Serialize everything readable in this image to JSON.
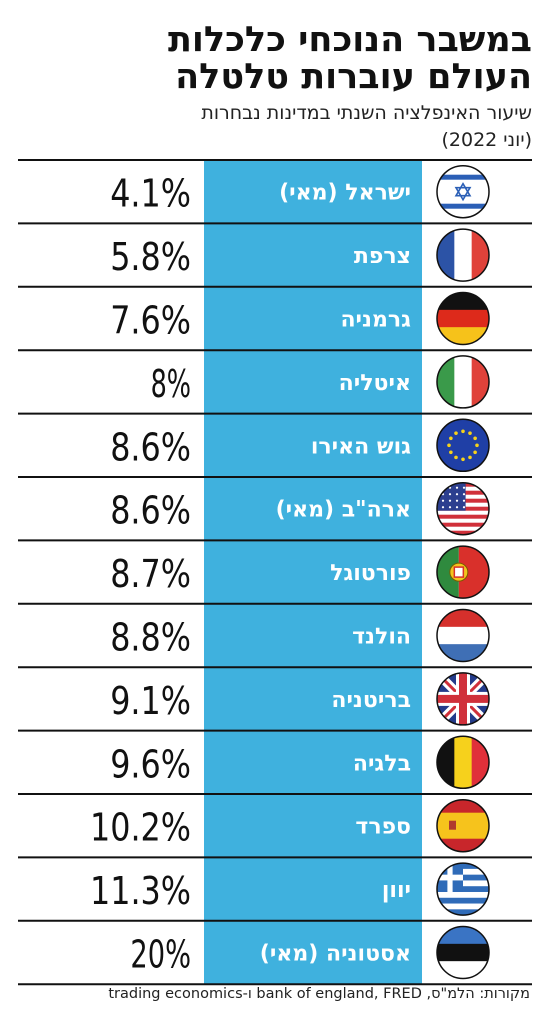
{
  "title_line1": "במשבר הנוכחי כלכלות",
  "title_line2": "העולם עוברות טלטלה",
  "subtitle_line1": "שיעור האינפלציה השנתי במדינות נבחרות",
  "subtitle_line2": "(יוני 2022)",
  "source": "מקורות: הלמ\"ס, bank of england, FRED ו-trading economics",
  "colors": {
    "band": "#3fb1de",
    "band_text": "#ffffff",
    "value_text": "#111111",
    "rule": "#111111"
  },
  "chart_data": {
    "type": "table",
    "title": "במשבר הנוכחי כלכלות העולם עוברות טלטלה",
    "subtitle": "שיעור האינפלציה השנתי במדינות נבחרות (יוני 2022)",
    "unit": "%",
    "rows": [
      {
        "country": "ישראל (מאי)",
        "value": 4.1,
        "label": "4.1%",
        "flag": "israel-flag-icon"
      },
      {
        "country": "צרפת",
        "value": 5.8,
        "label": "5.8%",
        "flag": "france-flag-icon"
      },
      {
        "country": "גרמניה",
        "value": 7.6,
        "label": "7.6%",
        "flag": "germany-flag-icon"
      },
      {
        "country": "איטליה",
        "value": 8,
        "label": "8%",
        "flag": "italy-flag-icon"
      },
      {
        "country": "גוש האירו",
        "value": 8.6,
        "label": "8.6%",
        "flag": "eu-flag-icon"
      },
      {
        "country": "ארה\"ב (מאי)",
        "value": 8.6,
        "label": "8.6%",
        "flag": "usa-flag-icon"
      },
      {
        "country": "פורטוגל",
        "value": 8.7,
        "label": "8.7%",
        "flag": "portugal-flag-icon"
      },
      {
        "country": "הולנד",
        "value": 8.8,
        "label": "8.8%",
        "flag": "netherlands-flag-icon"
      },
      {
        "country": "בריטניה",
        "value": 9.1,
        "label": "9.1%",
        "flag": "uk-flag-icon"
      },
      {
        "country": "בלגיה",
        "value": 9.6,
        "label": "9.6%",
        "flag": "belgium-flag-icon"
      },
      {
        "country": "ספרד",
        "value": 10.2,
        "label": "10.2%",
        "flag": "spain-flag-icon"
      },
      {
        "country": "יוון",
        "value": 11.3,
        "label": "11.3%",
        "flag": "greece-flag-icon"
      },
      {
        "country": "אסטוניה (מאי)",
        "value": 20,
        "label": "20%",
        "flag": "estonia-flag-icon"
      }
    ]
  }
}
